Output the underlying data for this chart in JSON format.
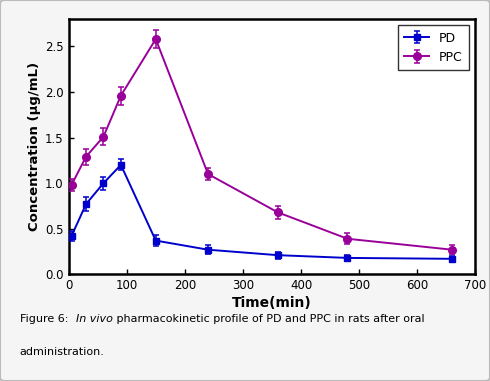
{
  "PD_x": [
    5,
    30,
    60,
    90,
    150,
    240,
    360,
    480,
    660
  ],
  "PD_y": [
    0.42,
    0.77,
    1.0,
    1.2,
    0.37,
    0.27,
    0.21,
    0.18,
    0.17
  ],
  "PD_yerr": [
    0.06,
    0.08,
    0.07,
    0.06,
    0.06,
    0.05,
    0.04,
    0.03,
    0.03
  ],
  "PPC_x": [
    5,
    30,
    60,
    90,
    150,
    240,
    360,
    480,
    660
  ],
  "PPC_y": [
    0.98,
    1.29,
    1.51,
    1.96,
    2.58,
    1.1,
    0.68,
    0.39,
    0.27
  ],
  "PPC_yerr": [
    0.07,
    0.09,
    0.09,
    0.1,
    0.1,
    0.07,
    0.07,
    0.06,
    0.05
  ],
  "PD_color": "#0000cc",
  "PPC_color": "#990099",
  "xlabel": "Time(min)",
  "ylabel": "Concentration (μg/mL)",
  "xlim": [
    0,
    700
  ],
  "ylim": [
    0,
    2.8
  ],
  "xticks": [
    0,
    100,
    200,
    300,
    400,
    500,
    600,
    700
  ],
  "yticks": [
    0.0,
    0.5,
    1.0,
    1.5,
    2.0,
    2.5
  ],
  "background_color": "#f0f0f0",
  "plot_bg_color": "#ffffff",
  "legend_PD": "PD",
  "legend_PPC": "PPC",
  "outer_border_color": "#cccccc"
}
